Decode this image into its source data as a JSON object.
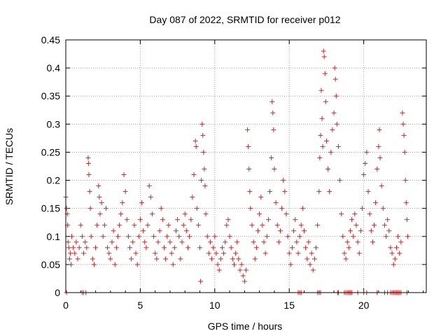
{
  "chart_data": {
    "type": "scatter",
    "title": "Day 087 of 2022, SRMTID for receiver p012",
    "xlabel": "GPS time / hours",
    "ylabel": "SRMTID / TECUs",
    "xlim": [
      0,
      24.2
    ],
    "ylim": [
      0,
      0.45
    ],
    "xticks": [
      0,
      5,
      10,
      15,
      20
    ],
    "xtick_labels": [
      "0",
      "5",
      "10",
      "15",
      "20"
    ],
    "yticks": [
      0,
      0.05,
      0.1,
      0.15,
      0.2,
      0.25,
      0.3,
      0.35,
      0.4,
      0.45
    ],
    "ytick_labels": [
      "0",
      "0.05",
      "0.1",
      "0.15",
      "0.2",
      "0.25",
      "0.3",
      "0.35",
      "0.4",
      "0.45"
    ],
    "grid": true,
    "marker": "plus",
    "series": [
      {
        "name": "SRMTID",
        "color": "#e41a1c",
        "points": [
          [
            0.0,
            0.17
          ],
          [
            0.05,
            0.15
          ],
          [
            0.1,
            0.14
          ],
          [
            0.12,
            0.12
          ],
          [
            0.15,
            0.09
          ],
          [
            0.2,
            0.08
          ],
          [
            0.25,
            0.06
          ],
          [
            0.3,
            0.07
          ],
          [
            0.35,
            0.05
          ],
          [
            0.4,
            0.1
          ],
          [
            0.5,
            0.08
          ],
          [
            0.6,
            0.07
          ],
          [
            0.7,
            0.09
          ],
          [
            0.8,
            0.06
          ],
          [
            0.9,
            0.08
          ],
          [
            1.0,
            0.12
          ],
          [
            1.1,
            0.1
          ],
          [
            1.2,
            0.07
          ],
          [
            1.3,
            0.09
          ],
          [
            1.4,
            0.08
          ],
          [
            1.5,
            0.24
          ],
          [
            1.52,
            0.23
          ],
          [
            1.55,
            0.21
          ],
          [
            1.6,
            0.18
          ],
          [
            1.65,
            0.15
          ],
          [
            1.7,
            0.1
          ],
          [
            1.8,
            0.06
          ],
          [
            1.9,
            0.05
          ],
          [
            2.0,
            0.08
          ],
          [
            2.1,
            0.12
          ],
          [
            2.2,
            0.19
          ],
          [
            2.25,
            0.17
          ],
          [
            2.3,
            0.14
          ],
          [
            2.4,
            0.16
          ],
          [
            2.5,
            0.1
          ],
          [
            2.6,
            0.12
          ],
          [
            2.7,
            0.15
          ],
          [
            2.8,
            0.08
          ],
          [
            2.9,
            0.07
          ],
          [
            3.0,
            0.06
          ],
          [
            3.1,
            0.09
          ],
          [
            3.2,
            0.11
          ],
          [
            3.3,
            0.05
          ],
          [
            3.4,
            0.08
          ],
          [
            3.5,
            0.1
          ],
          [
            3.6,
            0.12
          ],
          [
            3.7,
            0.14
          ],
          [
            3.8,
            0.16
          ],
          [
            3.9,
            0.21
          ],
          [
            4.0,
            0.18
          ],
          [
            4.1,
            0.13
          ],
          [
            4.2,
            0.1
          ],
          [
            4.3,
            0.08
          ],
          [
            4.4,
            0.06
          ],
          [
            4.5,
            0.09
          ],
          [
            4.6,
            0.12
          ],
          [
            4.7,
            0.07
          ],
          [
            4.8,
            0.05
          ],
          [
            4.9,
            0.1
          ],
          [
            5.0,
            0.13
          ],
          [
            5.1,
            0.16
          ],
          [
            5.2,
            0.11
          ],
          [
            5.3,
            0.09
          ],
          [
            5.4,
            0.08
          ],
          [
            5.5,
            0.12
          ],
          [
            5.6,
            0.19
          ],
          [
            5.7,
            0.17
          ],
          [
            5.8,
            0.14
          ],
          [
            5.9,
            0.1
          ],
          [
            6.0,
            0.07
          ],
          [
            6.1,
            0.06
          ],
          [
            6.2,
            0.09
          ],
          [
            6.3,
            0.11
          ],
          [
            6.4,
            0.15
          ],
          [
            6.5,
            0.13
          ],
          [
            6.6,
            0.08
          ],
          [
            6.7,
            0.06
          ],
          [
            6.8,
            0.1
          ],
          [
            6.9,
            0.12
          ],
          [
            7.0,
            0.09
          ],
          [
            7.1,
            0.07
          ],
          [
            7.2,
            0.05
          ],
          [
            7.3,
            0.08
          ],
          [
            7.4,
            0.11
          ],
          [
            7.5,
            0.13
          ],
          [
            7.6,
            0.1
          ],
          [
            7.7,
            0.06
          ],
          [
            7.8,
            0.09
          ],
          [
            7.9,
            0.12
          ],
          [
            8.0,
            0.14
          ],
          [
            8.1,
            0.11
          ],
          [
            8.2,
            0.08
          ],
          [
            8.3,
            0.1
          ],
          [
            8.4,
            0.13
          ],
          [
            8.5,
            0.17
          ],
          [
            8.6,
            0.21
          ],
          [
            8.7,
            0.27
          ],
          [
            8.75,
            0.26
          ],
          [
            8.8,
            0.15
          ],
          [
            8.9,
            0.12
          ],
          [
            9.0,
            0.08
          ],
          [
            9.05,
            0.02
          ],
          [
            9.1,
            0.2
          ],
          [
            9.15,
            0.3
          ],
          [
            9.2,
            0.28
          ],
          [
            9.25,
            0.25
          ],
          [
            9.3,
            0.22
          ],
          [
            9.35,
            0.19
          ],
          [
            9.4,
            0.14
          ],
          [
            9.5,
            0.1
          ],
          [
            9.6,
            0.07
          ],
          [
            9.7,
            0.09
          ],
          [
            9.8,
            0.06
          ],
          [
            9.9,
            0.08
          ],
          [
            10.0,
            0.1
          ],
          [
            10.1,
            0.07
          ],
          [
            10.2,
            0.05
          ],
          [
            10.3,
            0.04
          ],
          [
            10.4,
            0.06
          ],
          [
            10.5,
            0.08
          ],
          [
            10.6,
            0.07
          ],
          [
            10.7,
            0.09
          ],
          [
            10.8,
            0.12
          ],
          [
            10.9,
            0.13
          ],
          [
            11.0,
            0.1
          ],
          [
            11.1,
            0.08
          ],
          [
            11.2,
            0.06
          ],
          [
            11.3,
            0.05
          ],
          [
            11.4,
            0.07
          ],
          [
            11.5,
            0.09
          ],
          [
            11.6,
            0.06
          ],
          [
            11.7,
            0.04
          ],
          [
            11.8,
            0.05
          ],
          [
            11.9,
            0.03
          ],
          [
            12.0,
            0.02
          ],
          [
            12.1,
            0.04
          ],
          [
            12.2,
            0.29
          ],
          [
            12.25,
            0.26
          ],
          [
            12.3,
            0.22
          ],
          [
            12.35,
            0.18
          ],
          [
            12.4,
            0.15
          ],
          [
            12.5,
            0.12
          ],
          [
            12.6,
            0.09
          ],
          [
            12.7,
            0.06
          ],
          [
            12.8,
            0.08
          ],
          [
            12.9,
            0.11
          ],
          [
            13.0,
            0.14
          ],
          [
            13.1,
            0.17
          ],
          [
            13.2,
            0.12
          ],
          [
            13.3,
            0.09
          ],
          [
            13.4,
            0.07
          ],
          [
            13.5,
            0.1
          ],
          [
            13.6,
            0.13
          ],
          [
            13.7,
            0.18
          ],
          [
            13.8,
            0.24
          ],
          [
            13.85,
            0.34
          ],
          [
            13.9,
            0.32
          ],
          [
            13.95,
            0.29
          ],
          [
            14.0,
            0.22
          ],
          [
            14.1,
            0.16
          ],
          [
            14.2,
            0.12
          ],
          [
            14.3,
            0.09
          ],
          [
            14.4,
            0.11
          ],
          [
            14.5,
            0.15
          ],
          [
            14.6,
            0.2
          ],
          [
            14.7,
            0.18
          ],
          [
            14.8,
            0.14
          ],
          [
            14.9,
            0.1
          ],
          [
            15.0,
            0.07
          ],
          [
            15.1,
            0.05
          ],
          [
            15.2,
            0.08
          ],
          [
            15.3,
            0.11
          ],
          [
            15.4,
            0.13
          ],
          [
            15.5,
            0.09
          ],
          [
            15.6,
            0.07
          ],
          [
            15.7,
            0.1
          ],
          [
            15.8,
            0.12
          ],
          [
            15.9,
            0.15
          ],
          [
            16.0,
            0.11
          ],
          [
            16.1,
            0.08
          ],
          [
            16.2,
            0.06
          ],
          [
            16.3,
            0.09
          ],
          [
            16.4,
            0.05
          ],
          [
            16.5,
            0.07
          ],
          [
            16.6,
            0.04
          ],
          [
            16.7,
            0.06
          ],
          [
            16.8,
            0.08
          ],
          [
            16.9,
            0.12
          ],
          [
            17.0,
            0.18
          ],
          [
            17.05,
            0.24
          ],
          [
            17.1,
            0.28
          ],
          [
            17.15,
            0.36
          ],
          [
            17.2,
            0.31
          ],
          [
            17.25,
            0.26
          ],
          [
            17.3,
            0.43
          ],
          [
            17.35,
            0.42
          ],
          [
            17.4,
            0.39
          ],
          [
            17.45,
            0.34
          ],
          [
            17.5,
            0.27
          ],
          [
            17.6,
            0.22
          ],
          [
            17.7,
            0.18
          ],
          [
            17.8,
            0.25
          ],
          [
            17.9,
            0.29
          ],
          [
            18.0,
            0.32
          ],
          [
            18.05,
            0.4
          ],
          [
            18.1,
            0.38
          ],
          [
            18.15,
            0.35
          ],
          [
            18.2,
            0.3
          ],
          [
            18.3,
            0.26
          ],
          [
            18.4,
            0.2
          ],
          [
            18.5,
            0.14
          ],
          [
            18.6,
            0.1
          ],
          [
            18.7,
            0.07
          ],
          [
            18.8,
            0.06
          ],
          [
            18.9,
            0.09
          ],
          [
            19.0,
            0.08
          ],
          [
            19.1,
            0.11
          ],
          [
            19.2,
            0.13
          ],
          [
            19.3,
            0.1
          ],
          [
            19.4,
            0.14
          ],
          [
            19.5,
            0.12
          ],
          [
            19.6,
            0.09
          ],
          [
            19.7,
            0.07
          ],
          [
            19.8,
            0.11
          ],
          [
            19.9,
            0.15
          ],
          [
            20.0,
            0.21
          ],
          [
            20.1,
            0.23
          ],
          [
            20.2,
            0.25
          ],
          [
            20.3,
            0.18
          ],
          [
            20.4,
            0.14
          ],
          [
            20.5,
            0.11
          ],
          [
            20.6,
            0.09
          ],
          [
            20.7,
            0.12
          ],
          [
            20.8,
            0.16
          ],
          [
            20.9,
            0.22
          ],
          [
            21.0,
            0.26
          ],
          [
            21.05,
            0.29
          ],
          [
            21.1,
            0.24
          ],
          [
            21.2,
            0.19
          ],
          [
            21.3,
            0.15
          ],
          [
            21.4,
            0.12
          ],
          [
            21.5,
            0.1
          ],
          [
            21.6,
            0.13
          ],
          [
            21.7,
            0.11
          ],
          [
            21.8,
            0.08
          ],
          [
            21.9,
            0.07
          ],
          [
            22.0,
            0.05
          ],
          [
            22.1,
            0.06
          ],
          [
            22.2,
            0.08
          ],
          [
            22.3,
            0.1
          ],
          [
            22.4,
            0.07
          ],
          [
            22.5,
            0.09
          ],
          [
            22.6,
            0.32
          ],
          [
            22.65,
            0.3
          ],
          [
            22.7,
            0.28
          ],
          [
            22.75,
            0.25
          ],
          [
            22.8,
            0.2
          ],
          [
            22.85,
            0.16
          ],
          [
            22.9,
            0.13
          ],
          [
            22.95,
            0.1
          ]
        ],
        "zero_points": [
          0.05,
          1.1,
          1.2,
          1.35,
          15.6,
          15.7,
          15.8,
          16.9,
          17.0,
          17.1,
          18.25,
          18.3,
          18.7,
          18.8,
          18.9,
          19.0,
          19.1,
          19.2,
          19.6,
          20.0,
          20.2,
          20.9,
          21.4,
          21.6,
          21.8,
          21.9,
          22.0,
          22.1,
          22.2,
          22.3,
          22.4,
          22.5,
          22.9
        ]
      }
    ]
  }
}
